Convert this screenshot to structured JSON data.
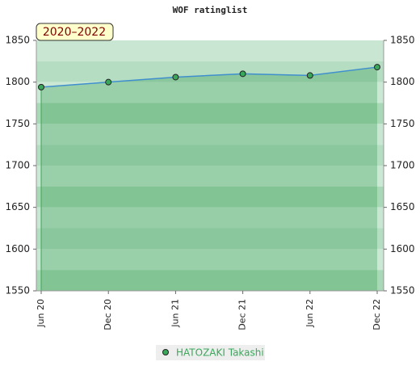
{
  "chart_data": {
    "type": "line",
    "title": "WOF ratinglist",
    "badge": "2020–2022",
    "categories": [
      "Jun 20",
      "Dec 20",
      "Jun 21",
      "Dec 21",
      "Jun 22",
      "Dec 22"
    ],
    "series": [
      {
        "name": "HATOZAKI Takashi",
        "color": "#3f8fce",
        "marker_color": "#3aa85a",
        "values": [
          1794,
          1800,
          1806,
          1810,
          1808,
          1818
        ]
      }
    ],
    "ylim": [
      1550,
      1850
    ],
    "yticks": [
      1550,
      1600,
      1650,
      1700,
      1750,
      1800,
      1850
    ],
    "area": true
  }
}
